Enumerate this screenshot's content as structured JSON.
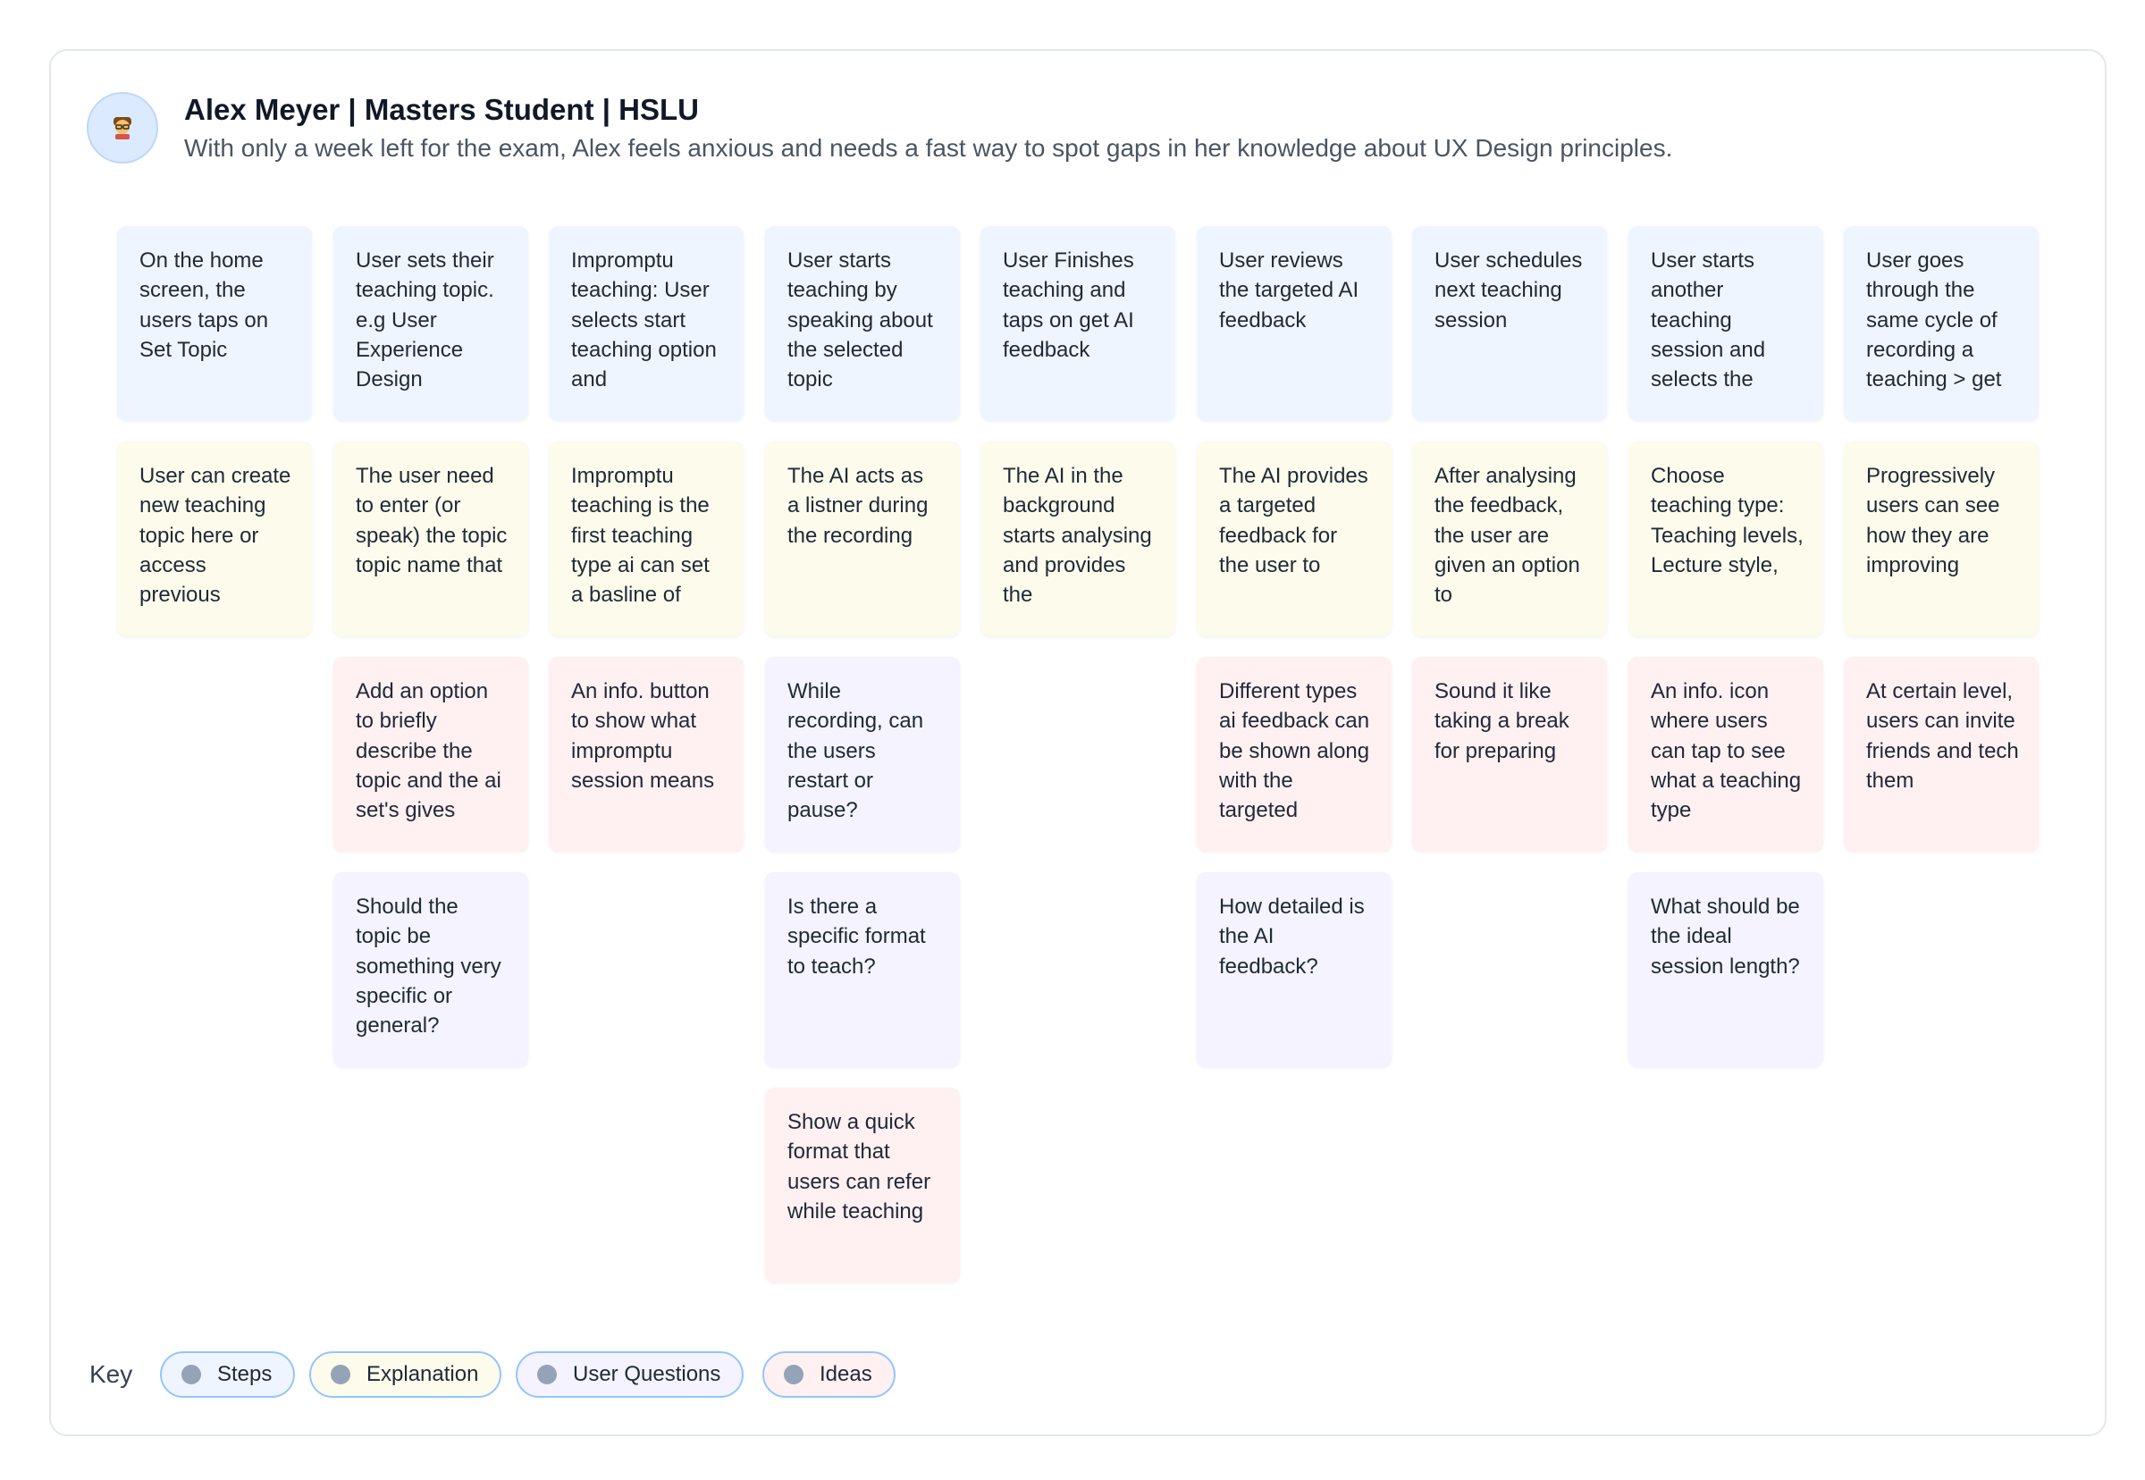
{
  "persona": {
    "title": "Alex Meyer | Masters Student | HSLU",
    "description": "With only a week left for the exam, Alex feels anxious and needs a fast way to spot gaps in her knowledge about UX Design principles.",
    "avatar_icon": "student-emoji-icon"
  },
  "columns": [
    {
      "cards": [
        {
          "type": "steps",
          "text": "On the home screen, the users taps on Set Topic"
        },
        {
          "type": "explanation",
          "text": "User can create new teaching topic here or access previous"
        }
      ]
    },
    {
      "cards": [
        {
          "type": "steps",
          "text": "User sets their teaching topic. e.g User Experience Design"
        },
        {
          "type": "explanation",
          "text": "The user need to enter (or speak) the topic topic name that"
        },
        {
          "type": "ideas",
          "text": "Add an option to briefly describe the topic and the ai set's gives"
        },
        {
          "type": "questions",
          "text": "Should the topic be something very specific or general?"
        }
      ]
    },
    {
      "cards": [
        {
          "type": "steps",
          "text": "Impromptu teaching: User selects start teaching option and"
        },
        {
          "type": "explanation",
          "text": "Impromptu teaching is the first teaching type ai can set a basline of"
        },
        {
          "type": "ideas",
          "text": "An info. button to show what impromptu session means"
        }
      ]
    },
    {
      "cards": [
        {
          "type": "steps",
          "text": "User starts teaching by speaking about the selected topic"
        },
        {
          "type": "explanation",
          "text": "The AI acts as a listner during the recording"
        },
        {
          "type": "questions",
          "text": "While recording, can the users restart or pause?"
        },
        {
          "type": "questions",
          "text": "Is there a specific format to teach?"
        },
        {
          "type": "ideas",
          "text": "Show a quick format that users can refer while teaching"
        }
      ]
    },
    {
      "cards": [
        {
          "type": "steps",
          "text": "User Finishes teaching and taps on get AI feedback"
        },
        {
          "type": "explanation",
          "text": "The AI in the background starts analysing and provides the"
        }
      ]
    },
    {
      "cards": [
        {
          "type": "steps",
          "text": "User reviews the targeted AI feedback"
        },
        {
          "type": "explanation",
          "text": "The AI provides a targeted feedback for the user to"
        },
        {
          "type": "ideas",
          "text": "Different types ai feedback can be shown along with the targeted"
        },
        {
          "type": "questions",
          "text": "How detailed is the AI feedback?"
        }
      ]
    },
    {
      "cards": [
        {
          "type": "steps",
          "text": "User schedules next teaching session"
        },
        {
          "type": "explanation",
          "text": "After analysing the feedback, the user are given an option to"
        },
        {
          "type": "ideas",
          "text": "Sound it like taking a break for preparing"
        }
      ]
    },
    {
      "cards": [
        {
          "type": "steps",
          "text": "User starts another teaching session and selects the"
        },
        {
          "type": "explanation",
          "text": "Choose teaching type: Teaching levels, Lecture style,"
        },
        {
          "type": "ideas",
          "text": "An info. icon where users can tap to see what a teaching type"
        },
        {
          "type": "questions",
          "text": "What should be the ideal session length?"
        }
      ]
    },
    {
      "cards": [
        {
          "type": "steps",
          "text": "User goes through the same cycle of recording a teaching > get"
        },
        {
          "type": "explanation",
          "text": "Progressively users can see how they are improving"
        },
        {
          "type": "ideas",
          "text": "At certain level, users can invite friends and tech them"
        }
      ]
    }
  ],
  "key": {
    "label": "Key",
    "items": [
      {
        "type": "steps",
        "label": "Steps"
      },
      {
        "type": "explanation",
        "label": "Explanation"
      },
      {
        "type": "questions",
        "label": "User Questions"
      },
      {
        "type": "ideas",
        "label": "Ideas"
      }
    ]
  },
  "colors": {
    "steps": "#eff5ff",
    "explanation": "#fdfbeb",
    "questions": "#f4f3ff",
    "ideas": "#fff0f1",
    "pill_border": "#93c5fd",
    "dot": "#94a3b8"
  }
}
